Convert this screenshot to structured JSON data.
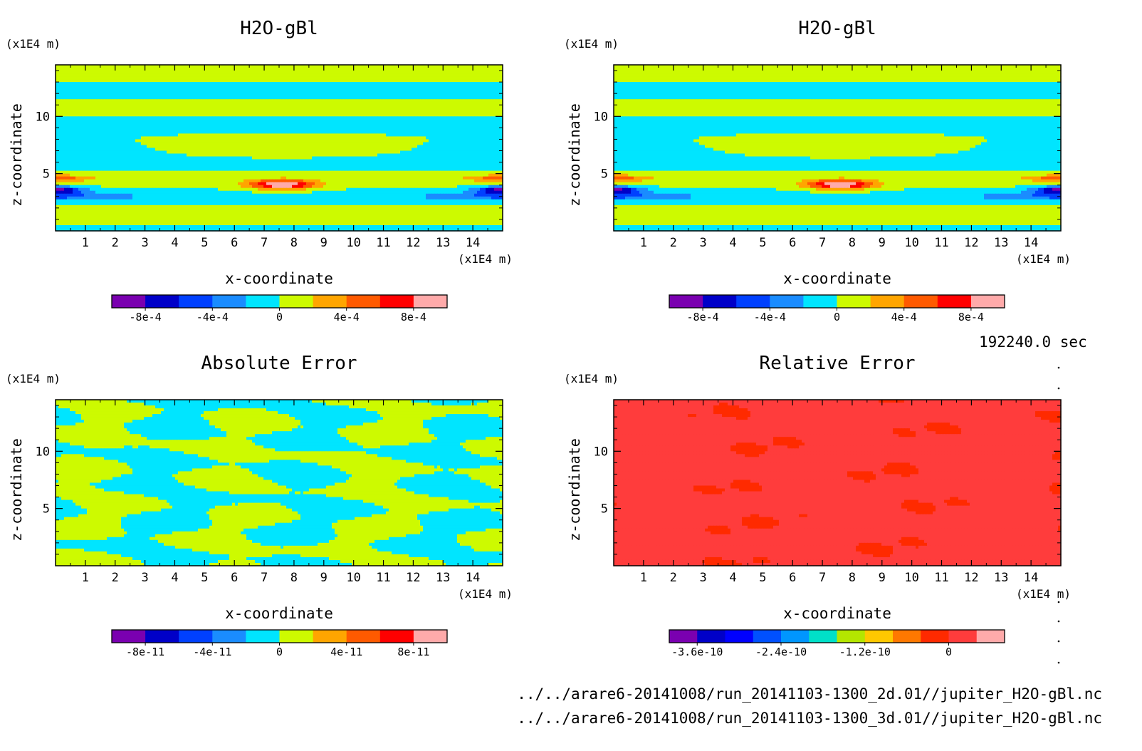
{
  "time_label": "192240.0 sec",
  "files": [
    "../../arare6-20141008/run_20141103-1300_2d.01//jupiter_H2O-gBl.nc",
    "../../arare6-20141008/run_20141103-1300_3d.01//jupiter_H2O-gBl.nc"
  ],
  "chart_data": [
    {
      "type": "heatmap",
      "title": "H2O-gBl",
      "xlabel": "x-coordinate",
      "ylabel": "z-coordinate",
      "xunit": "(x1E4 m)",
      "yunit": "(x1E4 m)",
      "xlim": [
        0,
        15
      ],
      "ylim": [
        0,
        14.5
      ],
      "xticks": [
        "1",
        "2",
        "3",
        "4",
        "5",
        "6",
        "7",
        "8",
        "9",
        "10",
        "11",
        "12",
        "13",
        "14"
      ],
      "yticks": [
        "5",
        "10"
      ],
      "field": "base",
      "colorbar": {
        "colors": [
          "#7a00b0",
          "#0000c8",
          "#0040ff",
          "#1a8cff",
          "#00e5ff",
          "#cdfa00",
          "#ffa500",
          "#ff5a00",
          "#ff0000",
          "#ffaaaa"
        ],
        "labels": [
          "-8e-4",
          "-4e-4",
          "0",
          "4e-4",
          "8e-4"
        ]
      }
    },
    {
      "type": "heatmap",
      "title": "H2O-gBl",
      "xlabel": "x-coordinate",
      "ylabel": "z-coordinate",
      "xunit": "(x1E4 m)",
      "yunit": "(x1E4 m)",
      "xlim": [
        0,
        15
      ],
      "ylim": [
        0,
        14.5
      ],
      "xticks": [
        "1",
        "2",
        "3",
        "4",
        "5",
        "6",
        "7",
        "8",
        "9",
        "10",
        "11",
        "12",
        "13",
        "14"
      ],
      "yticks": [
        "5",
        "10"
      ],
      "field": "base",
      "colorbar": {
        "colors": [
          "#7a00b0",
          "#0000c8",
          "#0040ff",
          "#1a8cff",
          "#00e5ff",
          "#cdfa00",
          "#ffa500",
          "#ff5a00",
          "#ff0000",
          "#ffaaaa"
        ],
        "labels": [
          "-8e-4",
          "-4e-4",
          "0",
          "4e-4",
          "8e-4"
        ]
      }
    },
    {
      "type": "heatmap",
      "title": "Absolute Error",
      "xlabel": "x-coordinate",
      "ylabel": "z-coordinate",
      "xunit": "(x1E4 m)",
      "yunit": "(x1E4 m)",
      "xlim": [
        0,
        15
      ],
      "ylim": [
        0,
        14.5
      ],
      "xticks": [
        "1",
        "2",
        "3",
        "4",
        "5",
        "6",
        "7",
        "8",
        "9",
        "10",
        "11",
        "12",
        "13",
        "14"
      ],
      "yticks": [
        "5",
        "10"
      ],
      "field": "abs_error",
      "colorbar": {
        "colors": [
          "#7a00b0",
          "#0000c8",
          "#0040ff",
          "#1a8cff",
          "#00e5ff",
          "#cdfa00",
          "#ffa500",
          "#ff5a00",
          "#ff0000",
          "#ffaaaa"
        ],
        "labels": [
          "-8e-11",
          "-4e-11",
          "0",
          "4e-11",
          "8e-11"
        ]
      }
    },
    {
      "type": "heatmap",
      "title": "Relative Error",
      "xlabel": "x-coordinate",
      "ylabel": "z-coordinate",
      "xunit": "(x1E4 m)",
      "yunit": "(x1E4 m)",
      "xlim": [
        0,
        15
      ],
      "ylim": [
        0,
        14.5
      ],
      "xticks": [
        "1",
        "2",
        "3",
        "4",
        "5",
        "6",
        "7",
        "8",
        "9",
        "10",
        "11",
        "12",
        "13",
        "14"
      ],
      "yticks": [
        "5",
        "10"
      ],
      "field": "rel_error",
      "colorbar": {
        "colors": [
          "#7a00b0",
          "#0000c8",
          "#0000ff",
          "#0050ff",
          "#0096ff",
          "#00e0c8",
          "#b4e600",
          "#ffc800",
          "#ff7800",
          "#ff2a00",
          "#ff3c3c",
          "#ffaaaa"
        ],
        "labels": [
          "-3.6e-10",
          "-2.4e-10",
          "-1.2e-10",
          "0"
        ]
      }
    }
  ]
}
